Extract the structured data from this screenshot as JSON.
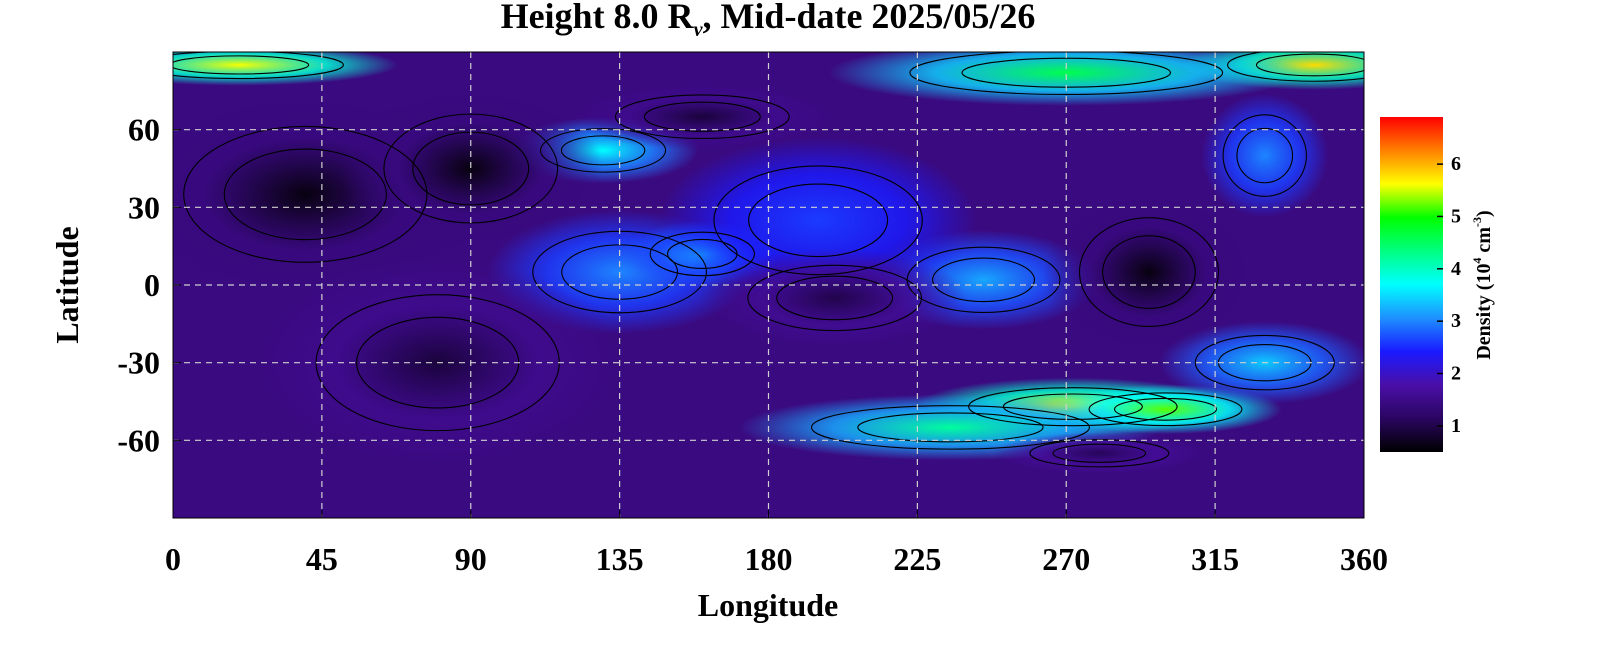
{
  "chart_data": {
    "type": "heatmap",
    "title_parts": {
      "prefix": "Height 8.0 R",
      "subscript": "ν",
      "suffix": ", Mid-date 2025/05/26"
    },
    "xlabel": "Longitude",
    "ylabel": "Latitude",
    "xlim": [
      0,
      360
    ],
    "ylim": [
      -90,
      90
    ],
    "xticks": [
      0,
      45,
      90,
      135,
      180,
      225,
      270,
      315,
      360
    ],
    "yticks": [
      60,
      30,
      0,
      -30,
      -60
    ],
    "grid": true,
    "colorbar": {
      "label_parts": {
        "pre": "Density (10",
        "sup1": "4",
        "mid": " cm",
        "sup2": "-3",
        "post": ")"
      },
      "range": [
        0.5,
        6.9
      ],
      "ticks": [
        1,
        2,
        3,
        4,
        5,
        6
      ],
      "colormap": [
        "#000000",
        "#2a0560",
        "#4a0fa8",
        "#1a1aff",
        "#1e90ff",
        "#00ffff",
        "#00ff80",
        "#00ff00",
        "#ffff00",
        "#ff8000",
        "#ff0000"
      ]
    },
    "features": [
      {
        "lon": 20,
        "lat": 85,
        "value": 5.6,
        "spread_lon": 30,
        "spread_lat": 5
      },
      {
        "lon": 345,
        "lat": 85,
        "value": 5.8,
        "spread_lon": 25,
        "spread_lat": 6
      },
      {
        "lon": 270,
        "lat": 82,
        "value": 4.6,
        "spread_lon": 45,
        "spread_lat": 8
      },
      {
        "lon": 130,
        "lat": 52,
        "value": 3.7,
        "spread_lon": 18,
        "spread_lat": 8
      },
      {
        "lon": 135,
        "lat": 5,
        "value": 3.0,
        "spread_lon": 25,
        "spread_lat": 15
      },
      {
        "lon": 160,
        "lat": 12,
        "value": 3.2,
        "spread_lon": 15,
        "spread_lat": 8
      },
      {
        "lon": 245,
        "lat": 2,
        "value": 3.2,
        "spread_lon": 22,
        "spread_lat": 12
      },
      {
        "lon": 195,
        "lat": 25,
        "value": 2.6,
        "spread_lon": 30,
        "spread_lat": 20
      },
      {
        "lon": 272,
        "lat": -47,
        "value": 5.7,
        "spread_lon": 30,
        "spread_lat": 7
      },
      {
        "lon": 300,
        "lat": -48,
        "value": 5.2,
        "spread_lon": 22,
        "spread_lat": 6
      },
      {
        "lon": 235,
        "lat": -55,
        "value": 4.2,
        "spread_lon": 40,
        "spread_lat": 8
      },
      {
        "lon": 330,
        "lat": -30,
        "value": 3.4,
        "spread_lon": 20,
        "spread_lat": 10
      },
      {
        "lon": 330,
        "lat": 50,
        "value": 3.0,
        "spread_lon": 12,
        "spread_lat": 15
      },
      {
        "lon": 40,
        "lat": 35,
        "value": 0.6,
        "spread_lon": 35,
        "spread_lat": 25
      },
      {
        "lon": 90,
        "lat": 45,
        "value": 0.6,
        "spread_lon": 25,
        "spread_lat": 20
      },
      {
        "lon": 295,
        "lat": 5,
        "value": 0.6,
        "spread_lon": 20,
        "spread_lat": 20
      },
      {
        "lon": 80,
        "lat": -30,
        "value": 0.9,
        "spread_lon": 35,
        "spread_lat": 25
      },
      {
        "lon": 200,
        "lat": -5,
        "value": 1.0,
        "spread_lon": 25,
        "spread_lat": 12
      },
      {
        "lon": 160,
        "lat": 65,
        "value": 0.9,
        "spread_lon": 25,
        "spread_lat": 8
      },
      {
        "lon": 280,
        "lat": -65,
        "value": 1.1,
        "spread_lon": 20,
        "spread_lat": 5
      }
    ]
  }
}
